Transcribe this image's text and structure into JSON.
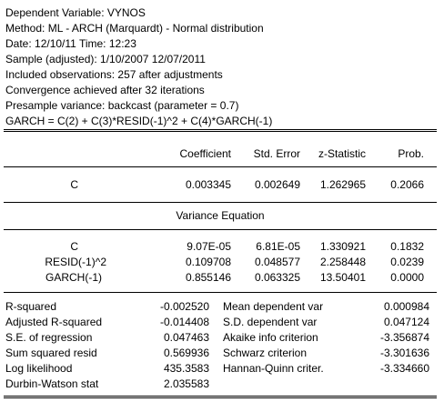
{
  "header": {
    "lines": [
      "Dependent Variable: VYNOS",
      "Method: ML - ARCH (Marquardt) - Normal distribution",
      "Date: 12/10/11   Time: 12:23",
      "Sample (adjusted): 1/10/2007 12/07/2011",
      "Included observations: 257 after adjustments",
      "Convergence achieved after 32 iterations",
      "Presample variance: backcast (parameter = 0.7)",
      "GARCH = C(2) + C(3)*RESID(-1)^2 + C(4)*GARCH(-1)"
    ]
  },
  "coef_table": {
    "columns": [
      "Coefficient",
      "Std. Error",
      "z-Statistic",
      "Prob."
    ],
    "mean_rows": [
      {
        "var": "C",
        "coef": "0.003345",
        "se": "0.002649",
        "z": "1.262965",
        "prob": "0.2066"
      }
    ],
    "variance_title": "Variance Equation",
    "variance_rows": [
      {
        "var": "C",
        "coef": "9.07E-05",
        "se": "6.81E-05",
        "z": "1.330921",
        "prob": "0.1832"
      },
      {
        "var": "RESID(-1)^2",
        "coef": "0.109708",
        "se": "0.048577",
        "z": "2.258448",
        "prob": "0.0239"
      },
      {
        "var": "GARCH(-1)",
        "coef": "0.855146",
        "se": "0.063325",
        "z": "13.50401",
        "prob": "0.0000"
      }
    ]
  },
  "stats": [
    {
      "label": "R-squared",
      "value": "-0.002520",
      "label2": "Mean dependent var",
      "value2": "0.000984"
    },
    {
      "label": "Adjusted R-squared",
      "value": "-0.014408",
      "label2": "S.D. dependent var",
      "value2": "0.047124"
    },
    {
      "label": "S.E. of regression",
      "value": "0.047463",
      "label2": "Akaike info criterion",
      "value2": "-3.356874"
    },
    {
      "label": "Sum squared resid",
      "value": "0.569936",
      "label2": "Schwarz criterion",
      "value2": "-3.301636"
    },
    {
      "label": "Log likelihood",
      "value": "435.3583",
      "label2": "Hannan-Quinn criter.",
      "value2": "-3.334660"
    },
    {
      "label": "Durbin-Watson stat",
      "value": "2.035583",
      "label2": "",
      "value2": ""
    }
  ]
}
